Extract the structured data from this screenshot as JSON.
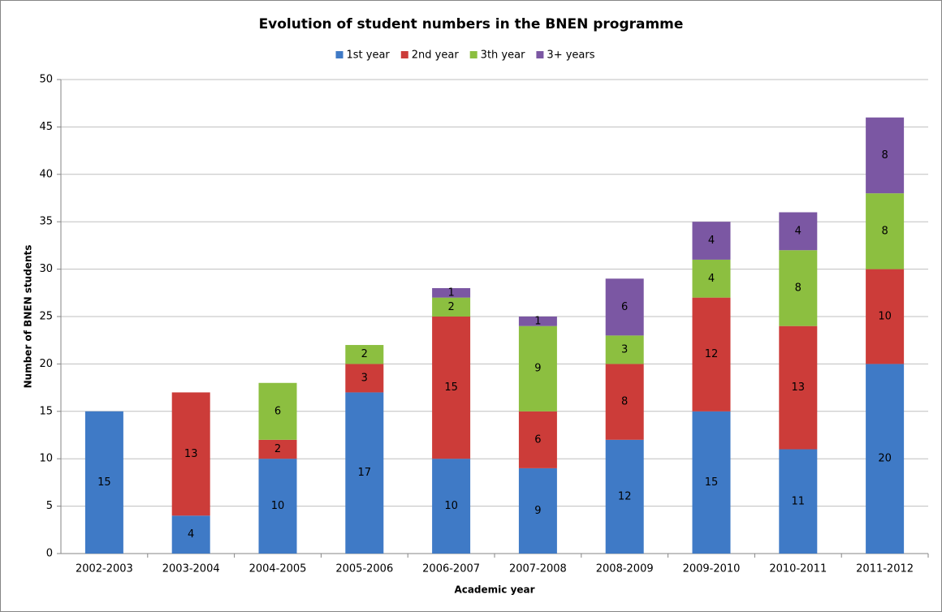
{
  "chart_data": {
    "type": "stacked_bar",
    "title": "Evolution of student numbers in the BNEN programme",
    "x_label": "Academic year",
    "y_label": "Number of BNEN students",
    "categories": [
      "2002-2003",
      "2003-2004",
      "2004-2005",
      "2005-2006",
      "2006-2007",
      "2007-2008",
      "2008-2009",
      "2009-2010",
      "2010-2011",
      "2011-2012"
    ],
    "series": [
      {
        "name": "1st year",
        "color": "#3f7ac6",
        "values": [
          15,
          4,
          10,
          17,
          10,
          9,
          12,
          15,
          11,
          20
        ]
      },
      {
        "name": "2nd year",
        "color": "#cc3c39",
        "values": [
          null,
          13,
          2,
          3,
          15,
          6,
          8,
          12,
          13,
          10
        ]
      },
      {
        "name": "3th year",
        "color": "#8cbf40",
        "values": [
          null,
          null,
          6,
          2,
          2,
          9,
          3,
          4,
          8,
          8
        ]
      },
      {
        "name": "3+ years",
        "color": "#7b57a3",
        "values": [
          null,
          null,
          null,
          null,
          1,
          1,
          6,
          4,
          4,
          8
        ]
      }
    ],
    "ylim": [
      0,
      50
    ],
    "yticks": [
      0,
      5,
      10,
      15,
      20,
      25,
      30,
      35,
      40,
      45,
      50
    ],
    "grid": true,
    "legend": "top"
  }
}
